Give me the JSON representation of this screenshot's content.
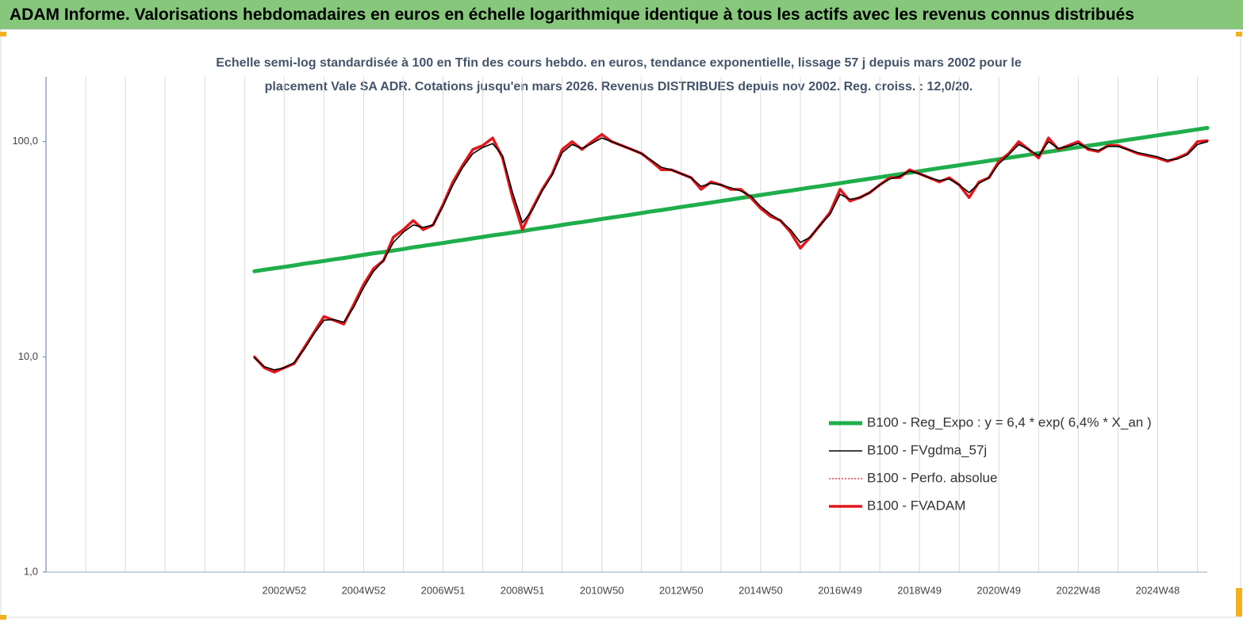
{
  "title": "ADAM Informe. Valorisations hebdomadaires en euros en échelle logarithmique identique à tous les actifs avec les revenus connus distribués",
  "chart_data": {
    "type": "line",
    "subtitle": [
      "Echelle semi-log standardisée à 100 en Tfin des cours hebdo. en euros, tendance exponentielle, lissage 57 j depuis mars 2002 pour le",
      "placement Vale SA ADR. Cotations jusqu'en mars 2026. Revenus DISTRIBUES depuis nov 2002. Reg. croiss. : 12,0/20."
    ],
    "yscale": "log",
    "ylim": [
      1,
      200
    ],
    "yticks": [
      {
        "value": 1,
        "label": "1,0"
      },
      {
        "value": 10,
        "label": "10,0"
      },
      {
        "value": 100,
        "label": "100,0"
      }
    ],
    "grid": true,
    "legend": "lower right",
    "categories": [
      null,
      null,
      null,
      null,
      null,
      null,
      null,
      null,
      null,
      null,
      null,
      null,
      null,
      null,
      null,
      null,
      null,
      null,
      null,
      null,
      null,
      null,
      null,
      null,
      "2002W52",
      null,
      null,
      null,
      null,
      null,
      null,
      null,
      "2004W52",
      null,
      null,
      null,
      null,
      null,
      null,
      null,
      "2006W51",
      null,
      null,
      null,
      null,
      null,
      null,
      null,
      "2008W51",
      null,
      null,
      null,
      null,
      null,
      null,
      null,
      "2010W50",
      null,
      null,
      null,
      null,
      null,
      null,
      null,
      "2012W50",
      null,
      null,
      null,
      null,
      null,
      null,
      null,
      "2014W50",
      null,
      null,
      null,
      null,
      null,
      null,
      null,
      "2016W49",
      null,
      null,
      null,
      null,
      null,
      null,
      null,
      "2018W49",
      null,
      null,
      null,
      null,
      null,
      null,
      null,
      "2020W49",
      null,
      null,
      null,
      null,
      null,
      null,
      null,
      "2022W48",
      null,
      null,
      null,
      null,
      null,
      null,
      null,
      "2024W48",
      null,
      null,
      null,
      null,
      null
    ],
    "series": [
      {
        "name": "B100 - Reg_Expo : y = 6,4 * exp( 6,4% *  X_an )",
        "color": "#1fae4b",
        "width": 5,
        "dash": "none",
        "values": [
          null,
          null,
          null,
          null,
          null,
          null,
          null,
          null,
          null,
          null,
          null,
          null,
          null,
          null,
          null,
          null,
          null,
          null,
          null,
          null,
          null,
          25,
          25.4,
          25.8,
          26.2,
          26.6,
          27.1,
          27.5,
          27.9,
          28.4,
          28.8,
          29.3,
          29.8,
          30.3,
          30.7,
          31.2,
          31.7,
          32.3,
          32.8,
          33.3,
          33.8,
          34.4,
          34.9,
          35.5,
          36.1,
          36.7,
          37.2,
          37.8,
          38.4,
          39.1,
          39.7,
          40.3,
          41.0,
          41.7,
          42.3,
          43.0,
          43.7,
          44.4,
          45.1,
          45.8,
          46.6,
          47.4,
          48.1,
          48.9,
          49.7,
          50.5,
          51.3,
          52.1,
          53.0,
          53.8,
          54.7,
          55.6,
          56.5,
          57.4,
          58.3,
          59.2,
          60.2,
          61.2,
          62.1,
          63.1,
          64.1,
          65.2,
          66.2,
          67.3,
          68.4,
          69.5,
          70.6,
          71.7,
          72.9,
          74.1,
          75.3,
          76.5,
          77.7,
          79.0,
          80.2,
          81.5,
          82.8,
          84.2,
          85.5,
          86.9,
          88.3,
          89.8,
          91.2,
          92.7,
          94.2,
          95.7,
          97.2,
          98.8,
          100.4,
          102,
          103.6,
          105.3,
          107.0,
          108.7,
          110.4,
          112.2,
          114.0,
          115.9
        ]
      },
      {
        "name": "B100 - FVgdma_57j",
        "color": "#000000",
        "width": 1.6,
        "dash": "none",
        "values": [
          null,
          null,
          null,
          null,
          null,
          null,
          null,
          null,
          null,
          null,
          null,
          null,
          null,
          null,
          null,
          null,
          null,
          null,
          null,
          null,
          null,
          9.9,
          9.0,
          8.7,
          8.9,
          9.4,
          10.8,
          12.8,
          14.8,
          14.9,
          14.5,
          17,
          21,
          25,
          28,
          34,
          38,
          41,
          40,
          41,
          50,
          63,
          76,
          88,
          94,
          98,
          86,
          58,
          42,
          48,
          59,
          70,
          89,
          97,
          93,
          98,
          104,
          100,
          96,
          92,
          88,
          82,
          76,
          74,
          71,
          68,
          62,
          64,
          63,
          61,
          59,
          56,
          50,
          46,
          43,
          39,
          34,
          36,
          41,
          46,
          57,
          54,
          55,
          58,
          63,
          67,
          69,
          73,
          71,
          68,
          66,
          67,
          63,
          58,
          64,
          68,
          79,
          87,
          97,
          92,
          86,
          100,
          93,
          95,
          98,
          93,
          91,
          95,
          95,
          92,
          89,
          87,
          85,
          82,
          83,
          87,
          97,
          100
        ]
      },
      {
        "name": "B100 - Perfo. absolue",
        "color": "#e3161c",
        "width": 1.2,
        "dash": "2 2",
        "values": [
          null,
          null,
          null,
          null,
          null,
          null,
          null,
          null,
          null,
          null,
          null,
          null,
          null,
          null,
          null,
          null,
          null,
          null,
          null,
          null,
          null,
          10,
          8.9,
          8.5,
          8.9,
          9.3,
          11,
          13,
          15.4,
          14.8,
          14.2,
          17.5,
          21.7,
          25.7,
          28,
          36,
          39,
          43,
          39,
          41,
          51,
          65,
          78,
          92,
          96,
          104,
          84,
          55,
          39,
          49,
          60,
          71,
          92,
          100,
          92,
          100,
          108,
          100,
          96,
          92,
          88,
          81,
          74,
          74,
          71,
          68,
          60,
          65,
          63,
          60,
          60,
          55,
          49,
          45,
          43,
          38,
          32,
          36,
          41,
          47,
          60,
          53,
          55,
          58,
          63,
          68,
          68,
          74,
          71,
          68,
          65,
          68,
          63,
          55,
          65,
          68,
          81,
          88,
          100,
          92,
          84,
          104,
          92,
          96,
          100,
          92,
          90,
          96,
          96,
          92,
          88,
          86,
          84,
          81,
          84,
          88,
          100,
          101
        ]
      },
      {
        "name": "B100 - FVADAM",
        "color": "#e3161c",
        "width": 3.5,
        "dash": "none",
        "values": [
          null,
          null,
          null,
          null,
          null,
          null,
          null,
          null,
          null,
          null,
          null,
          null,
          null,
          null,
          null,
          null,
          null,
          null,
          null,
          null,
          null,
          10,
          8.9,
          8.5,
          8.9,
          9.3,
          11,
          13,
          15.4,
          14.8,
          14.2,
          17.5,
          21.7,
          25.7,
          28,
          36,
          39,
          43,
          39,
          41,
          51,
          65,
          78,
          92,
          96,
          104,
          84,
          55,
          39,
          49,
          60,
          71,
          92,
          100,
          92,
          100,
          108,
          100,
          96,
          92,
          88,
          81,
          74,
          74,
          71,
          68,
          60,
          65,
          63,
          60,
          60,
          55,
          49,
          45,
          43,
          38,
          32,
          36,
          41,
          47,
          60,
          53,
          55,
          58,
          63,
          68,
          68,
          74,
          71,
          68,
          65,
          68,
          63,
          55,
          65,
          68,
          81,
          88,
          100,
          92,
          84,
          104,
          92,
          96,
          100,
          92,
          90,
          96,
          96,
          92,
          88,
          86,
          84,
          81,
          84,
          88,
          100,
          101
        ]
      }
    ]
  }
}
